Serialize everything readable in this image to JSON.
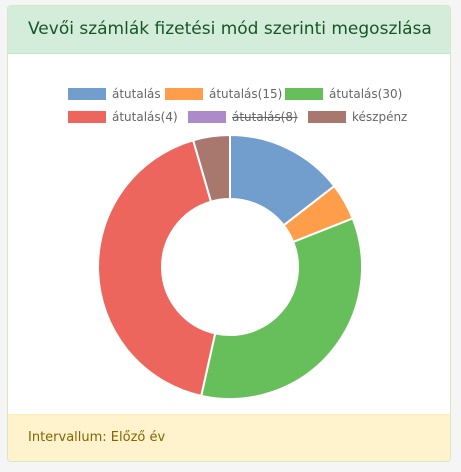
{
  "card": {
    "title": "Vevői számlák fizetési mód szerinti megoszlása",
    "footer": "Intervallum: Előző év"
  },
  "chart_data": {
    "type": "pie",
    "variant": "doughnut",
    "title": "",
    "legend_position": "top",
    "categories": [
      "átutalás",
      "átutalás(15)",
      "átutalás(30)",
      "átutalás(4)",
      "átutalás(8)",
      "készpénz"
    ],
    "values": [
      14.5,
      4.5,
      34.5,
      42,
      0,
      4.5
    ],
    "hidden": [
      false,
      false,
      false,
      false,
      true,
      false
    ],
    "colors": [
      "#729ece",
      "#ff9e4a",
      "#67bf5c",
      "#ed665d",
      "#ad8bc9",
      "#a8786e"
    ]
  }
}
